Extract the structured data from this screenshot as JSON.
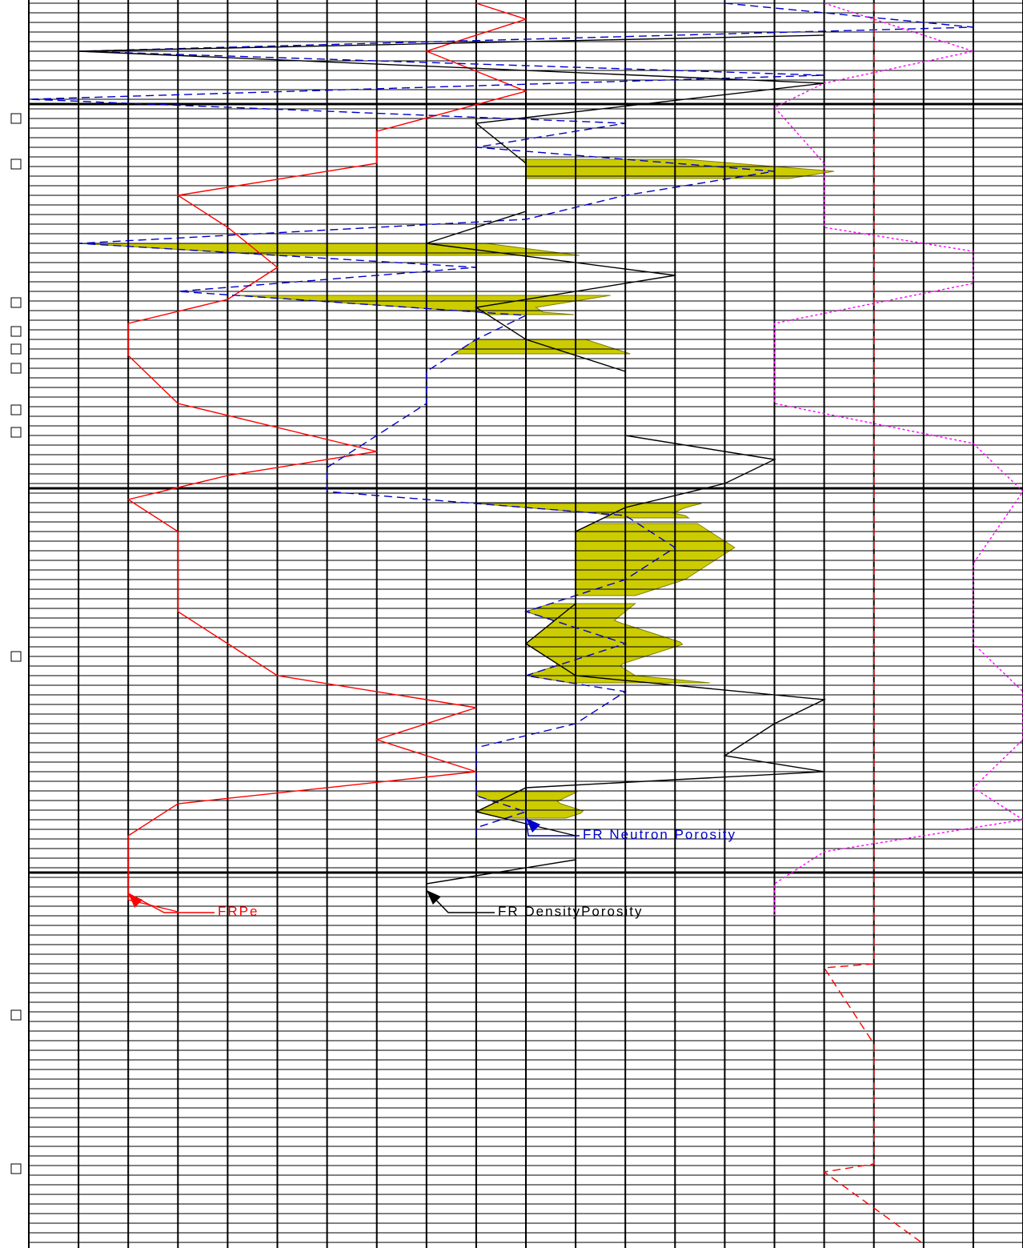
{
  "chart_data": {
    "type": "line",
    "title": "",
    "xlabel": "",
    "ylabel": "",
    "grid": true,
    "grid_columns": 20,
    "major_depth_lines": 3,
    "colors": {
      "background": "#ffffff",
      "grid": "#000000",
      "pe": "#ff0000",
      "neutron": "#0000cc",
      "density": "#000000",
      "crossover_fill": "#cccc00",
      "secondary_dashed": "#ff00ff",
      "secondary_solid": "#ff0000"
    },
    "series": [
      {
        "name": "FRPe",
        "label": "FRPe",
        "style": "solid",
        "color": "#ff0000",
        "points": [
          [
            0,
            9
          ],
          [
            20,
            10
          ],
          [
            60,
            8
          ],
          [
            110,
            10
          ],
          [
            160,
            7
          ],
          [
            200,
            7
          ],
          [
            240,
            3
          ],
          [
            280,
            4
          ],
          [
            330,
            5
          ],
          [
            370,
            4
          ],
          [
            400,
            2
          ],
          [
            440,
            2
          ],
          [
            500,
            3
          ],
          [
            560,
            7
          ],
          [
            590,
            4
          ],
          [
            620,
            2
          ],
          [
            660,
            3
          ],
          [
            720,
            3
          ],
          [
            760,
            3
          ],
          [
            800,
            4
          ],
          [
            840,
            5
          ],
          [
            880,
            9
          ],
          [
            920,
            7
          ],
          [
            960,
            9
          ],
          [
            1000,
            3
          ],
          [
            1040,
            2
          ],
          [
            1080,
            2
          ],
          [
            1120,
            2
          ],
          [
            1135,
            3
          ]
        ]
      },
      {
        "name": "FR Neutron Porosity",
        "label": "FR Neutron Porosity",
        "style": "dashed",
        "color": "#0000cc",
        "points": [
          [
            0,
            14
          ],
          [
            30,
            19
          ],
          [
            60,
            1
          ],
          [
            90,
            16
          ],
          [
            120,
            0
          ],
          [
            150,
            12
          ],
          [
            180,
            9
          ],
          [
            210,
            15
          ],
          [
            240,
            12
          ],
          [
            270,
            10
          ],
          [
            300,
            1
          ],
          [
            330,
            9
          ],
          [
            360,
            3
          ],
          [
            390,
            10
          ],
          [
            420,
            9
          ],
          [
            460,
            8
          ],
          [
            500,
            8
          ],
          [
            540,
            7
          ],
          [
            580,
            6
          ],
          [
            610,
            6
          ],
          [
            640,
            12
          ],
          [
            680,
            13
          ],
          [
            720,
            12
          ],
          [
            760,
            10
          ],
          [
            800,
            12
          ],
          [
            840,
            10
          ],
          [
            860,
            12
          ],
          [
            900,
            11
          ],
          [
            930,
            9
          ],
          [
            960,
            9
          ],
          [
            990,
            9
          ],
          [
            1010,
            10
          ],
          [
            1030,
            9
          ],
          [
            1040,
            9
          ]
        ]
      },
      {
        "name": "FR DensityPorosity",
        "label": "FR DensityPorosity",
        "style": "solid",
        "color": "#000000",
        "points": [
          [
            0,
            16
          ],
          [
            40,
            16
          ],
          [
            60,
            1
          ],
          [
            100,
            16
          ],
          [
            150,
            9
          ],
          [
            200,
            10
          ],
          [
            260,
            10
          ],
          [
            300,
            8
          ],
          [
            340,
            13
          ],
          [
            380,
            9
          ],
          [
            420,
            10
          ],
          [
            460,
            12
          ],
          [
            500,
            12
          ],
          [
            540,
            12
          ],
          [
            570,
            15
          ],
          [
            600,
            14
          ],
          [
            630,
            12
          ],
          [
            660,
            11
          ],
          [
            700,
            11
          ],
          [
            750,
            11
          ],
          [
            800,
            10
          ],
          [
            840,
            11
          ],
          [
            870,
            16
          ],
          [
            900,
            15
          ],
          [
            940,
            14
          ],
          [
            960,
            16
          ],
          [
            980,
            10
          ],
          [
            1010,
            9
          ],
          [
            1040,
            11
          ],
          [
            1070,
            11
          ],
          [
            1100,
            8
          ],
          [
            1120,
            8
          ]
        ]
      },
      {
        "name": "",
        "style": "dashed",
        "color": "#ff00ff",
        "points": [
          [
            0,
            16
          ],
          [
            60,
            19
          ],
          [
            100,
            16
          ],
          [
            130,
            15
          ],
          [
            200,
            16
          ],
          [
            280,
            16
          ],
          [
            310,
            19
          ],
          [
            350,
            19
          ],
          [
            400,
            15
          ],
          [
            500,
            15
          ],
          [
            550,
            19
          ],
          [
            610,
            20
          ],
          [
            700,
            19
          ],
          [
            800,
            19
          ],
          [
            860,
            20
          ],
          [
            920,
            20
          ],
          [
            980,
            19
          ],
          [
            1020,
            20
          ],
          [
            1060,
            16
          ],
          [
            1100,
            15
          ],
          [
            1140,
            15
          ]
        ]
      },
      {
        "name": "",
        "style": "dashed",
        "color": "#ff0000",
        "points": [
          [
            0,
            17
          ],
          [
            100,
            17
          ],
          [
            200,
            17
          ],
          [
            300,
            17
          ],
          [
            370,
            17
          ],
          [
            450,
            17
          ],
          [
            500,
            17
          ],
          [
            550,
            17
          ],
          [
            600,
            17
          ],
          [
            700,
            17
          ],
          [
            800,
            17
          ],
          [
            900,
            17
          ],
          [
            1000,
            17
          ],
          [
            1100,
            17
          ],
          [
            1200,
            17
          ],
          [
            1205,
            16
          ],
          [
            1300,
            17
          ],
          [
            1400,
            17
          ],
          [
            1450,
            17
          ],
          [
            1460,
            16
          ],
          [
            1550,
            18
          ]
        ]
      }
    ],
    "crossover_regions": [
      {
        "depth_range": [
          195,
          220
        ]
      },
      {
        "depth_range": [
          300,
          315
        ]
      },
      {
        "depth_range": [
          365,
          390
        ]
      },
      {
        "depth_range": [
          420,
          440
        ]
      },
      {
        "depth_range": [
          625,
          645
        ]
      },
      {
        "depth_range": [
          650,
          740
        ]
      },
      {
        "depth_range": [
          750,
          850
        ]
      },
      {
        "depth_range": [
          985,
          1020
        ]
      }
    ]
  }
}
